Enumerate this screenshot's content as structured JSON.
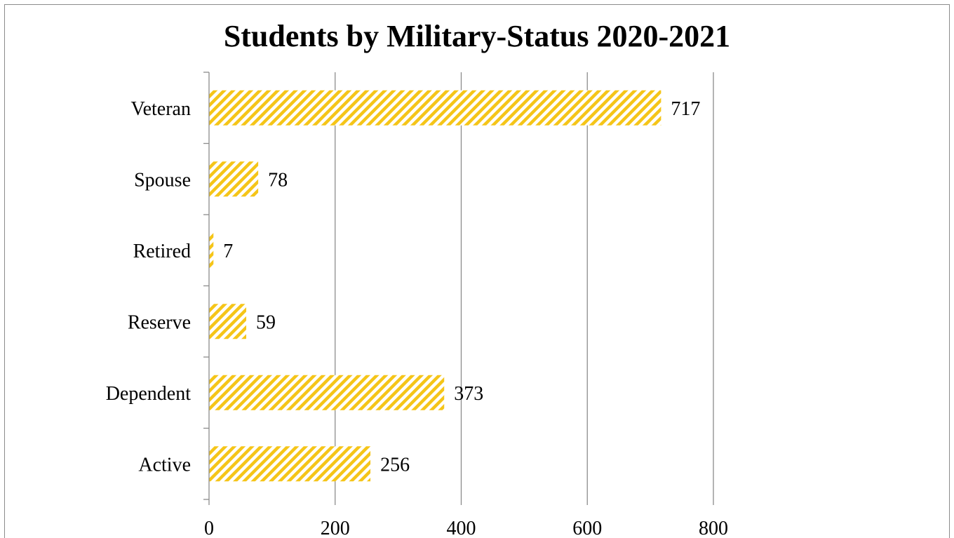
{
  "chart_data": {
    "type": "bar",
    "orientation": "horizontal",
    "title": "Students by Military-Status 2020-2021",
    "categories": [
      "Veteran",
      "Spouse",
      "Retired",
      "Reserve",
      "Dependent",
      "Active"
    ],
    "values": [
      717,
      78,
      7,
      59,
      373,
      256
    ],
    "xlim": [
      0,
      800
    ],
    "xticks": [
      0,
      200,
      400,
      600,
      800
    ],
    "grid": "vertical",
    "data_labels": true,
    "bar_color": "#f5c518",
    "bar_pattern": "diagonal-stripes"
  }
}
